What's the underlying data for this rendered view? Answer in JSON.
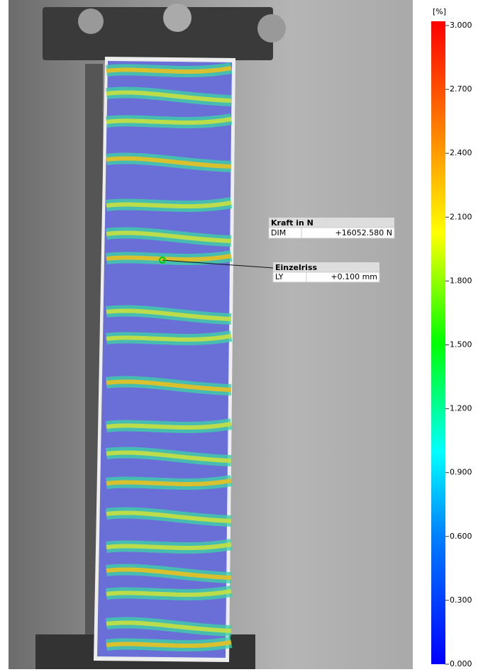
{
  "colorbar": {
    "unit": "[%]",
    "ticks": [
      "3.000",
      "2.700",
      "2.400",
      "2.100",
      "1.800",
      "1.500",
      "1.200",
      "0.900",
      "0.600",
      "0.300",
      "0.000"
    ]
  },
  "labels": [
    {
      "title": "Kraft in N",
      "name": "DIM",
      "value": "+16052.580 N"
    },
    {
      "title": "Einzelriss",
      "name": "LY",
      "value": "+0.100 mm"
    }
  ]
}
